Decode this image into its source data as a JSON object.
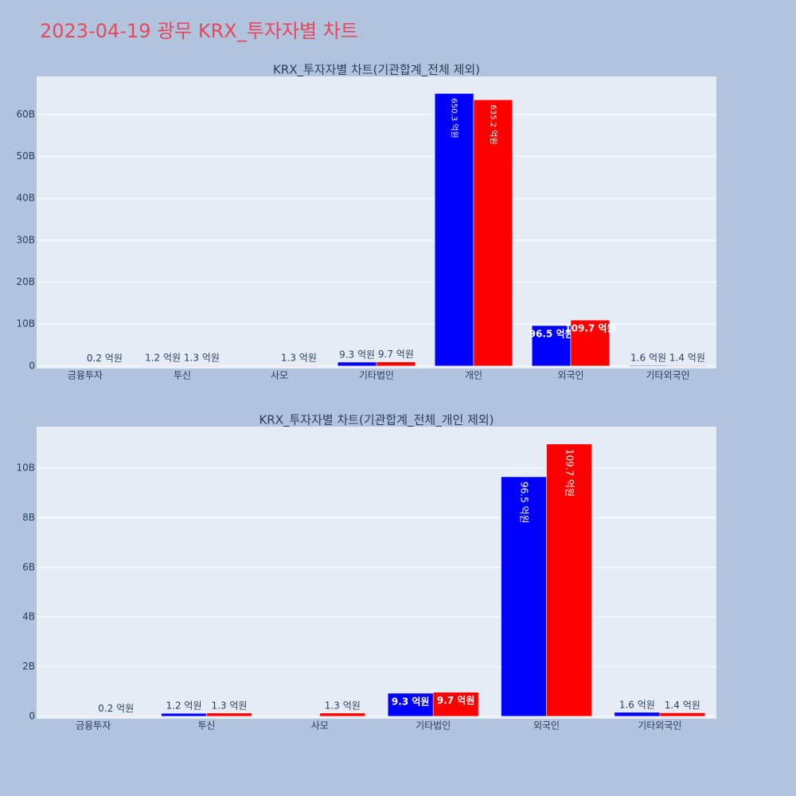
{
  "title": "2023-04-19 광무 KRX_투자자별 차트",
  "chart_data": [
    {
      "type": "bar",
      "title": "KRX_투자자별 차트(기관합계_전체 제외)",
      "categories": [
        "금융투자",
        "투신",
        "사모",
        "기타법인",
        "개인",
        "외국인",
        "기타외국인"
      ],
      "series": [
        {
          "color": "#0000ff",
          "values": [
            null,
            0.12,
            null,
            0.93,
            65.03,
            9.65,
            0.16
          ],
          "value_labels": [
            null,
            "1.2 억원",
            null,
            "9.3 억원",
            "650.3 억원",
            "96.5 억원",
            "1.6 억원"
          ]
        },
        {
          "color": "#ff0000",
          "values": [
            0.02,
            0.13,
            0.13,
            0.97,
            63.52,
            10.97,
            0.14
          ],
          "value_labels": [
            "0.2 억원",
            "1.3 억원",
            "1.3 억원",
            "9.7 억원",
            "635.2 억원",
            "109.7 억원",
            "1.4 억원"
          ]
        }
      ],
      "ylim": [
        -0.6,
        69.1
      ],
      "yticks": [
        0,
        {
          "value": 10,
          "label": "10B"
        },
        {
          "value": 20,
          "label": "20B"
        },
        {
          "value": 30,
          "label": "30B"
        },
        {
          "value": 40,
          "label": "40B"
        },
        {
          "value": 50,
          "label": "50B"
        },
        {
          "value": 60,
          "label": "60B"
        }
      ],
      "grid": true
    },
    {
      "type": "bar",
      "title": "KRX_투자자별 차트(기관합계_전체_개인 제외)",
      "categories": [
        "금융투자",
        "투신",
        "사모",
        "기타법인",
        "외국인",
        "기타외국인"
      ],
      "series": [
        {
          "color": "#0000ff",
          "values": [
            null,
            0.12,
            null,
            0.93,
            9.65,
            0.16
          ],
          "value_labels": [
            null,
            "1.2 억원",
            null,
            "9.3 억원",
            "96.5 억원",
            "1.6 억원"
          ]
        },
        {
          "color": "#ff0000",
          "values": [
            0.02,
            0.13,
            0.13,
            0.97,
            10.97,
            0.14
          ],
          "value_labels": [
            "0.2 억원",
            "1.3 억원",
            "1.3 억원",
            "9.7 억원",
            "109.7 억원",
            "1.4 억원"
          ]
        }
      ],
      "ylim": [
        -0.1,
        11.67
      ],
      "yticks": [
        0,
        {
          "value": 2,
          "label": "2B"
        },
        {
          "value": 4,
          "label": "4B"
        },
        {
          "value": 6,
          "label": "6B"
        },
        {
          "value": 8,
          "label": "8B"
        },
        {
          "value": 10,
          "label": "10B"
        }
      ],
      "grid": true
    }
  ]
}
